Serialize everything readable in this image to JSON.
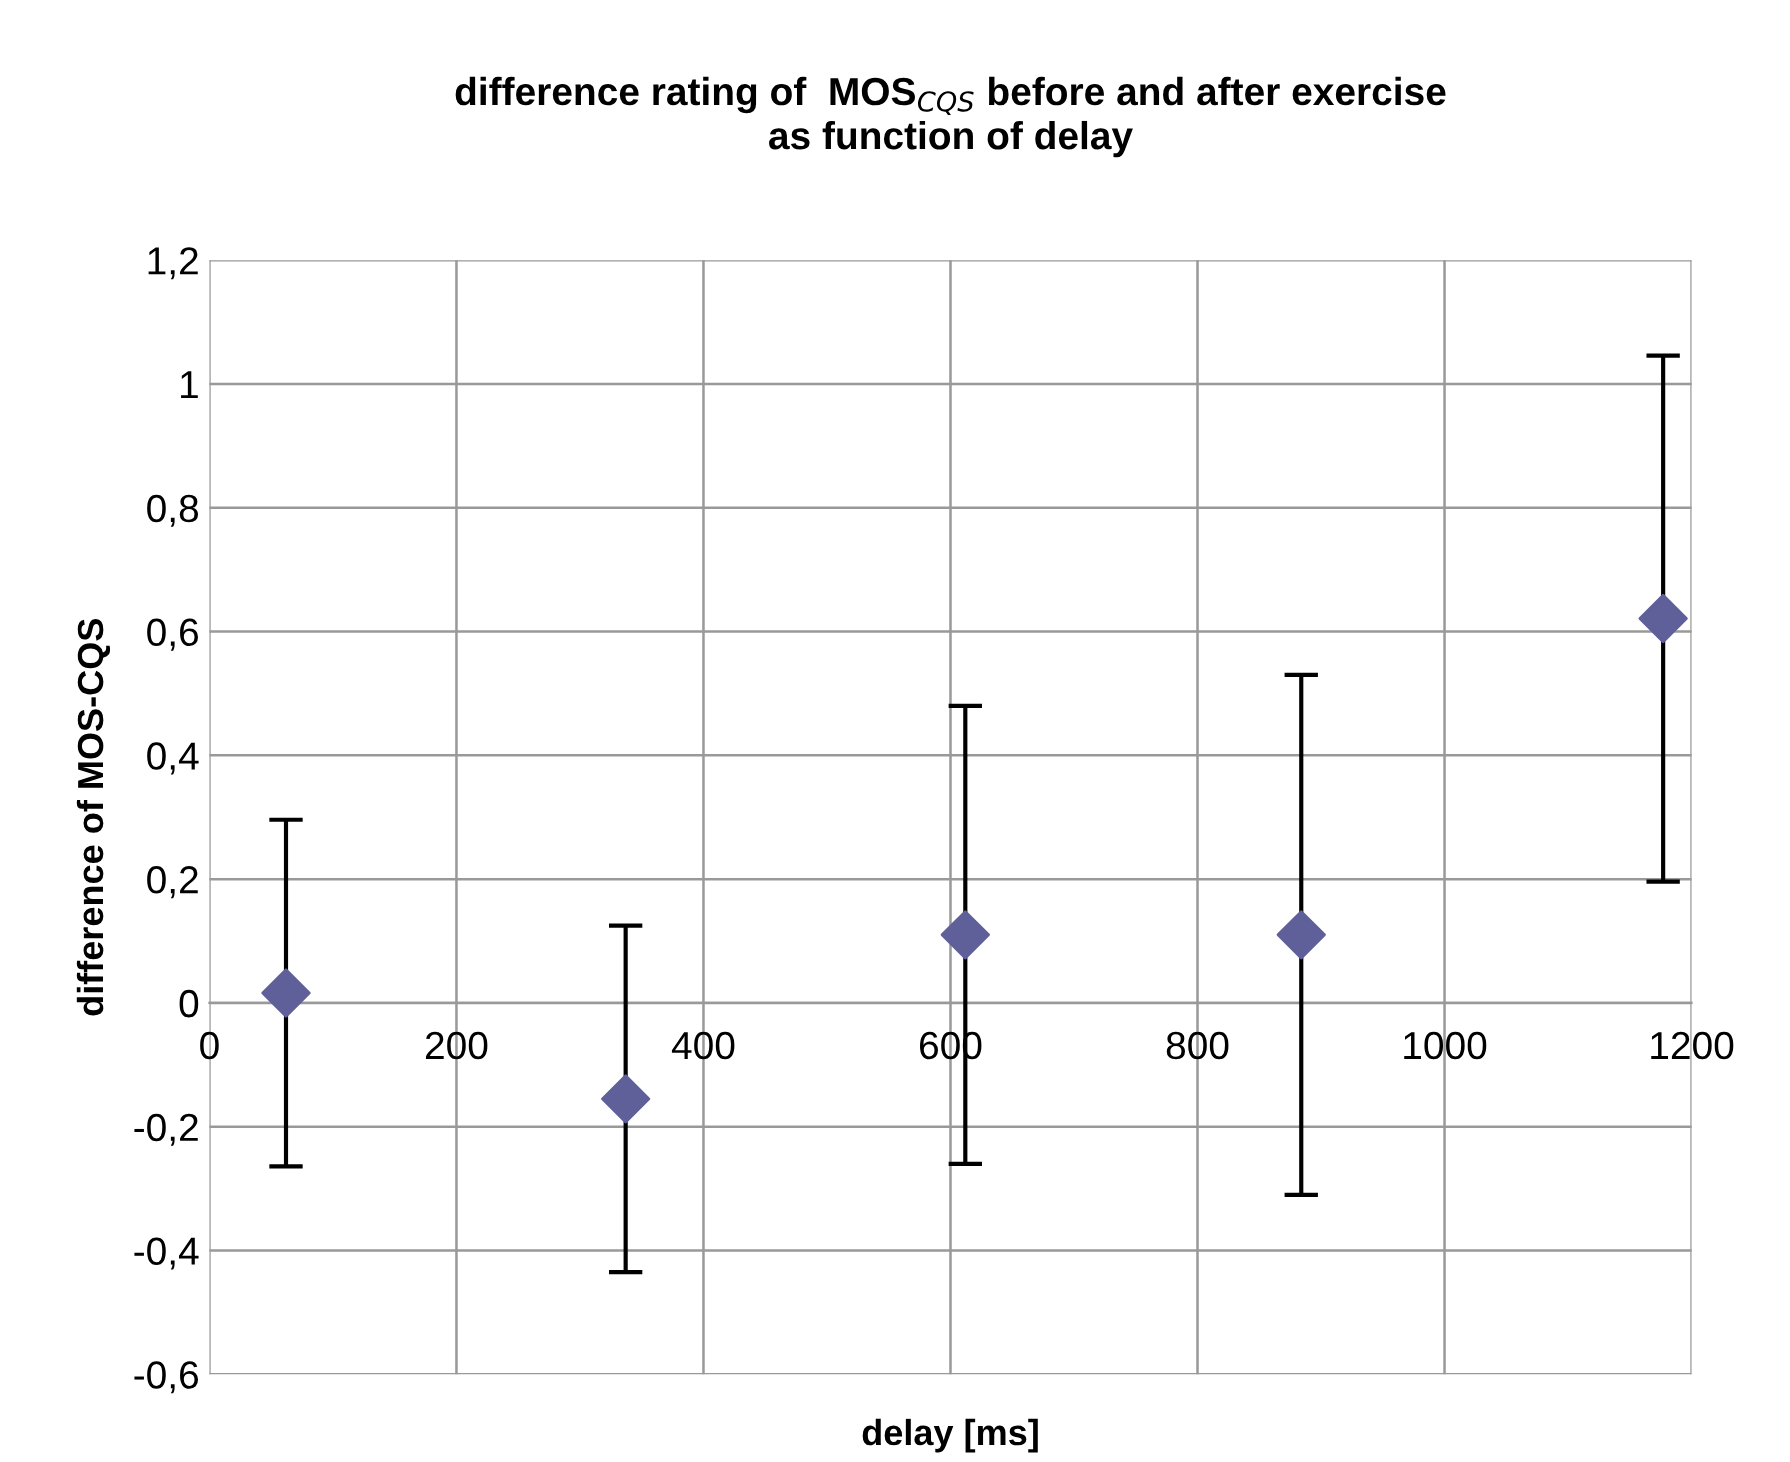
{
  "chart_data": {
    "type": "scatter",
    "title": "difference rating of  MOS$_{CQS}$ before and after exercise\nas function of delay",
    "xlabel": "delay [ms]",
    "ylabel": "difference of MOS-CQS",
    "x": [
      62,
      337,
      612,
      884,
      1177
    ],
    "series": [
      {
        "color": "#5f5f9a",
        "values": [
          0.016,
          -0.155,
          0.11,
          0.11,
          0.621
        ],
        "errors": [
          0.28,
          0.28,
          0.37,
          0.42,
          0.425
        ]
      }
    ],
    "xlim": [
      0,
      1200
    ],
    "xticks": [
      0,
      200,
      400,
      600,
      800,
      1000,
      1200
    ],
    "ylim": [
      -0.6,
      1.2
    ],
    "yticks": [
      {
        "value": -0.6,
        "label": "-0,6"
      },
      {
        "value": -0.4,
        "label": "-0,4"
      },
      {
        "value": -0.2,
        "label": "-0,2"
      },
      0,
      {
        "value": 0.2,
        "label": "0,2"
      },
      {
        "value": 0.4,
        "label": "0,4"
      },
      {
        "value": 0.6,
        "label": "0,6"
      },
      {
        "value": 0.8,
        "label": "0,8"
      },
      1,
      {
        "value": 1.2,
        "label": "1,2"
      }
    ],
    "grid": true,
    "marker": "diamond"
  }
}
